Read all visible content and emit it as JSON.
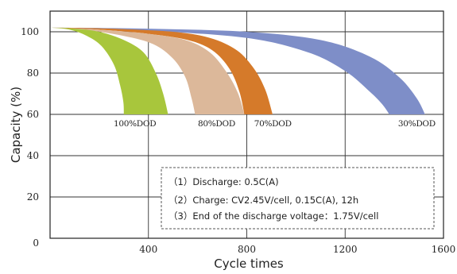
{
  "chart_data": {
    "type": "area",
    "xlabel": "Cycle  times",
    "ylabel": "Capacity (%)",
    "xlim": [
      0,
      1600
    ],
    "ylim": [
      0,
      110
    ],
    "x_ticks": [
      "400",
      "800",
      "1200",
      "1600"
    ],
    "x_tick_values": [
      400,
      800,
      1200,
      1600
    ],
    "y_ticks": [
      "0",
      "20",
      "40",
      "60",
      "80",
      "100"
    ],
    "y_tick_values": [
      0,
      20,
      40,
      60,
      80,
      100
    ],
    "grid": true,
    "origin_label": "0",
    "series": [
      {
        "name": "100%DOD",
        "color": "#a8c63c",
        "start": [
          0,
          102
        ],
        "end_range": [
          300,
          480
        ],
        "end_value": 60,
        "upper": [
          [
            0,
            102
          ],
          [
            100,
            101.5
          ],
          [
            200,
            100
          ],
          [
            300,
            96
          ],
          [
            380,
            90
          ],
          [
            430,
            80
          ],
          [
            460,
            70
          ],
          [
            480,
            60
          ]
        ],
        "lower": [
          [
            0,
            102
          ],
          [
            80,
            101
          ],
          [
            150,
            98
          ],
          [
            210,
            93
          ],
          [
            260,
            84
          ],
          [
            285,
            74
          ],
          [
            298,
            66
          ],
          [
            300,
            60
          ]
        ]
      },
      {
        "name": "80%DOD",
        "color": "#dcb89a",
        "start": [
          0,
          102
        ],
        "end_range": [
          590,
          790
        ],
        "end_value": 60,
        "upper": [
          [
            0,
            102
          ],
          [
            200,
            101
          ],
          [
            400,
            99
          ],
          [
            550,
            96
          ],
          [
            650,
            90
          ],
          [
            720,
            80
          ],
          [
            765,
            70
          ],
          [
            790,
            60
          ]
        ],
        "lower": [
          [
            0,
            102
          ],
          [
            150,
            100.8
          ],
          [
            300,
            98
          ],
          [
            420,
            94
          ],
          [
            500,
            87
          ],
          [
            550,
            78
          ],
          [
            575,
            68
          ],
          [
            590,
            60
          ]
        ]
      },
      {
        "name": "70%DOD",
        "color": "#d57a2a",
        "start": [
          0,
          102
        ],
        "end_range": [
          790,
          905
        ],
        "end_value": 60,
        "upper": [
          [
            0,
            102
          ],
          [
            250,
            101.5
          ],
          [
            500,
            100
          ],
          [
            650,
            97
          ],
          [
            760,
            91
          ],
          [
            830,
            82
          ],
          [
            875,
            72
          ],
          [
            905,
            60
          ]
        ],
        "lower": [
          [
            0,
            102
          ],
          [
            200,
            101
          ],
          [
            400,
            99
          ],
          [
            560,
            96
          ],
          [
            660,
            91
          ],
          [
            730,
            82
          ],
          [
            770,
            71
          ],
          [
            790,
            60
          ]
        ]
      },
      {
        "name": "30%DOD",
        "color": "#7e8ec8",
        "start": [
          0,
          102
        ],
        "end_range": [
          1380,
          1525
        ],
        "end_value": 60,
        "upper": [
          [
            0,
            102
          ],
          [
            400,
            101.5
          ],
          [
            800,
            100
          ],
          [
            1100,
            96
          ],
          [
            1300,
            88
          ],
          [
            1420,
            78
          ],
          [
            1490,
            68
          ],
          [
            1525,
            60
          ]
        ],
        "lower": [
          [
            0,
            102
          ],
          [
            400,
            100.5
          ],
          [
            800,
            97
          ],
          [
            1050,
            90
          ],
          [
            1200,
            81
          ],
          [
            1300,
            71
          ],
          [
            1350,
            65
          ],
          [
            1380,
            60
          ]
        ]
      }
    ],
    "annotations": [
      "（1）Discharge: 0.5C(A)",
      "（2）Charge:  CV2.45V/cell, 0.15C(A), 12h",
      "（3）End of the discharge voltage：1.75V/cell"
    ]
  }
}
